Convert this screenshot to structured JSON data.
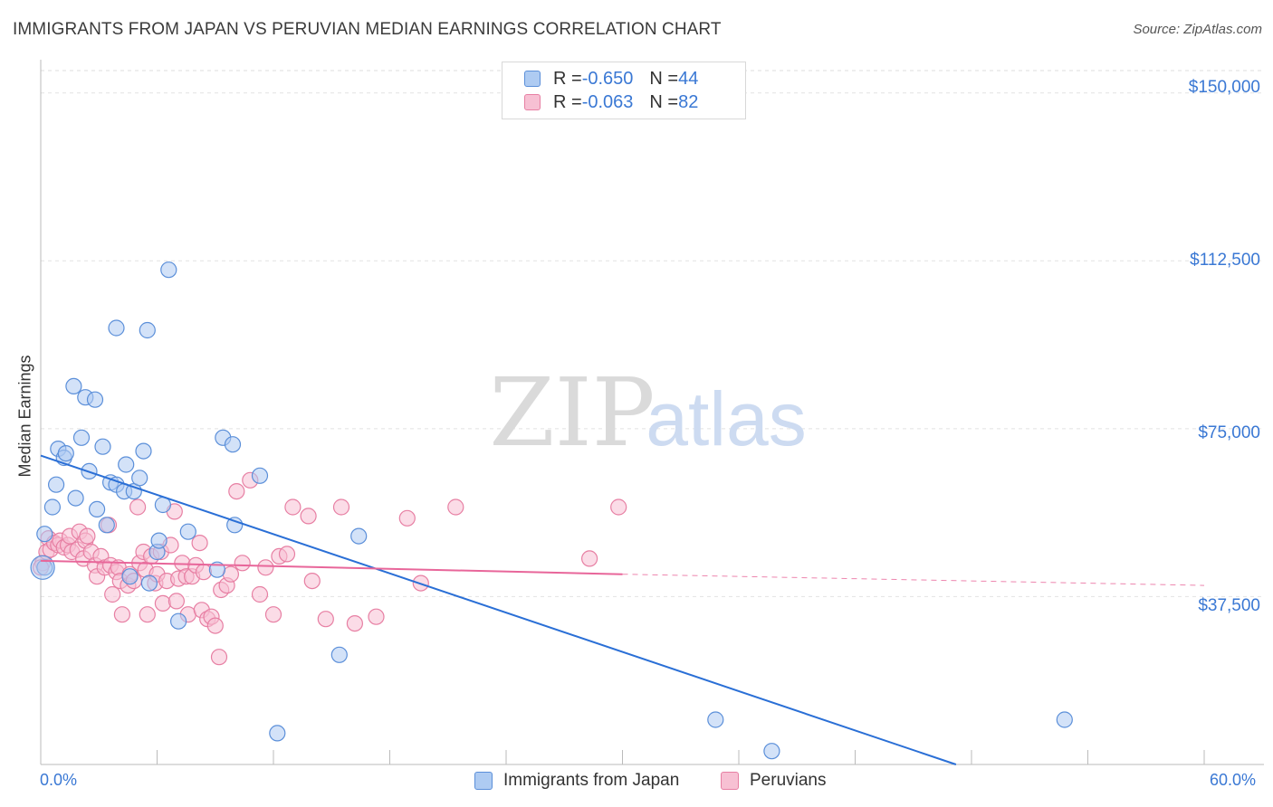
{
  "title": "IMMIGRANTS FROM JAPAN VS PERUVIAN MEDIAN EARNINGS CORRELATION CHART",
  "source": "Source: ZipAtlas.com",
  "watermark": {
    "zip": "ZIP",
    "atlas": "atlas"
  },
  "legend": {
    "rows": [
      {
        "r_label": "R = ",
        "r_value": "-0.650",
        "n_label": "N = ",
        "n_value": "44",
        "color": "#aecbf2",
        "border": "#5b8fd9"
      },
      {
        "r_label": "R = ",
        "r_value": "-0.063",
        "n_label": "N = ",
        "n_value": "82",
        "color": "#f7c0d3",
        "border": "#e77fa3"
      }
    ]
  },
  "bottom_legend": [
    {
      "label": "Immigrants from Japan",
      "color": "#aecbf2",
      "border": "#5b8fd9"
    },
    {
      "label": "Peruvians",
      "color": "#f7c0d3",
      "border": "#e77fa3"
    }
  ],
  "x_labels": {
    "min": "0.0%",
    "max": "60.0%"
  },
  "y_labels": [
    "$150,000",
    "$112,500",
    "$75,000",
    "$37,500"
  ],
  "y_axis_title": "Median Earnings",
  "chart_data": {
    "type": "scatter",
    "xlim": [
      0,
      60
    ],
    "ylim": [
      0,
      155000
    ],
    "x_unit": "%",
    "y_ticks": [
      37500,
      75000,
      112500,
      150000
    ],
    "grid": true,
    "legend_position": "top-center",
    "series": [
      {
        "name": "Immigrants from Japan",
        "color": "#5b8fd9",
        "fill": "#aecbf2",
        "trend": {
          "x": [
            0,
            47.2
          ],
          "y": [
            69000,
            0
          ],
          "color": "#2a6fd6"
        },
        "points": [
          [
            0.2,
            51500
          ],
          [
            0.2,
            44000
          ],
          [
            0.6,
            57500
          ],
          [
            0.8,
            62500
          ],
          [
            0.9,
            70500
          ],
          [
            1.2,
            68500
          ],
          [
            1.3,
            69500
          ],
          [
            1.8,
            59500
          ],
          [
            1.7,
            84500
          ],
          [
            2.1,
            73000
          ],
          [
            2.3,
            82000
          ],
          [
            2.5,
            65500
          ],
          [
            2.8,
            81500
          ],
          [
            2.9,
            57000
          ],
          [
            3.2,
            71000
          ],
          [
            3.4,
            53500
          ],
          [
            3.6,
            63000
          ],
          [
            3.9,
            62500
          ],
          [
            3.9,
            97500
          ],
          [
            4.3,
            61000
          ],
          [
            4.4,
            67000
          ],
          [
            4.6,
            42000
          ],
          [
            4.8,
            61000
          ],
          [
            5.1,
            64000
          ],
          [
            5.3,
            70000
          ],
          [
            5.5,
            97000
          ],
          [
            5.6,
            40500
          ],
          [
            6.0,
            47500
          ],
          [
            6.1,
            50000
          ],
          [
            6.3,
            58000
          ],
          [
            6.6,
            110500
          ],
          [
            7.1,
            32000
          ],
          [
            7.6,
            52000
          ],
          [
            9.1,
            43500
          ],
          [
            9.4,
            73000
          ],
          [
            9.9,
            71500
          ],
          [
            10.0,
            53500
          ],
          [
            11.3,
            64500
          ],
          [
            12.2,
            7000
          ],
          [
            15.4,
            24500
          ],
          [
            16.4,
            51000
          ],
          [
            34.8,
            10000
          ],
          [
            37.7,
            3000
          ],
          [
            52.8,
            10000
          ]
        ]
      },
      {
        "name": "Peruvians",
        "color": "#e77fa3",
        "fill": "#f7c0d3",
        "trend": {
          "x": [
            0,
            30
          ],
          "y": [
            45500,
            42500
          ],
          "dash_to_x": 60,
          "dash_to_y": 40000,
          "color": "#e8669a"
        },
        "points": [
          [
            0.1,
            45000
          ],
          [
            0.3,
            47500
          ],
          [
            0.4,
            50500
          ],
          [
            0.5,
            48000
          ],
          [
            0.7,
            49500
          ],
          [
            0.9,
            49000
          ],
          [
            1.0,
            50000
          ],
          [
            1.2,
            48500
          ],
          [
            1.4,
            49000
          ],
          [
            1.5,
            51000
          ],
          [
            1.6,
            47500
          ],
          [
            1.9,
            48000
          ],
          [
            2.0,
            52000
          ],
          [
            2.2,
            46000
          ],
          [
            2.3,
            50000
          ],
          [
            2.4,
            51000
          ],
          [
            2.6,
            47500
          ],
          [
            2.8,
            44500
          ],
          [
            2.9,
            42000
          ],
          [
            3.1,
            46500
          ],
          [
            3.3,
            44000
          ],
          [
            3.5,
            53500
          ],
          [
            3.6,
            44500
          ],
          [
            3.7,
            38000
          ],
          [
            3.9,
            43000
          ],
          [
            4.0,
            44000
          ],
          [
            4.1,
            41000
          ],
          [
            4.2,
            33500
          ],
          [
            4.5,
            40000
          ],
          [
            4.6,
            42500
          ],
          [
            4.8,
            41000
          ],
          [
            5.0,
            57500
          ],
          [
            5.1,
            45000
          ],
          [
            5.3,
            47500
          ],
          [
            5.4,
            43500
          ],
          [
            5.5,
            33500
          ],
          [
            5.7,
            46500
          ],
          [
            5.9,
            40500
          ],
          [
            6.0,
            42500
          ],
          [
            6.2,
            47500
          ],
          [
            6.3,
            36000
          ],
          [
            6.5,
            41000
          ],
          [
            6.7,
            49000
          ],
          [
            6.9,
            56500
          ],
          [
            7.0,
            36500
          ],
          [
            7.1,
            41500
          ],
          [
            7.3,
            45000
          ],
          [
            7.5,
            42000
          ],
          [
            7.6,
            33500
          ],
          [
            7.8,
            42000
          ],
          [
            8.0,
            44500
          ],
          [
            8.2,
            49500
          ],
          [
            8.3,
            34500
          ],
          [
            8.4,
            43000
          ],
          [
            8.6,
            32500
          ],
          [
            8.8,
            33000
          ],
          [
            9.0,
            31000
          ],
          [
            9.2,
            24000
          ],
          [
            9.3,
            39000
          ],
          [
            9.6,
            40000
          ],
          [
            9.8,
            42500
          ],
          [
            10.1,
            61000
          ],
          [
            10.4,
            45000
          ],
          [
            10.8,
            63500
          ],
          [
            11.3,
            38000
          ],
          [
            11.6,
            44000
          ],
          [
            12.0,
            33500
          ],
          [
            12.3,
            46500
          ],
          [
            12.7,
            47000
          ],
          [
            13.0,
            57500
          ],
          [
            13.8,
            55500
          ],
          [
            14.0,
            41000
          ],
          [
            14.7,
            32500
          ],
          [
            15.5,
            57500
          ],
          [
            16.2,
            31500
          ],
          [
            17.3,
            33000
          ],
          [
            18.9,
            55000
          ],
          [
            19.6,
            40500
          ],
          [
            21.4,
            57500
          ],
          [
            28.3,
            46000
          ],
          [
            29.8,
            57500
          ],
          [
            0.0,
            44000
          ]
        ]
      }
    ]
  }
}
